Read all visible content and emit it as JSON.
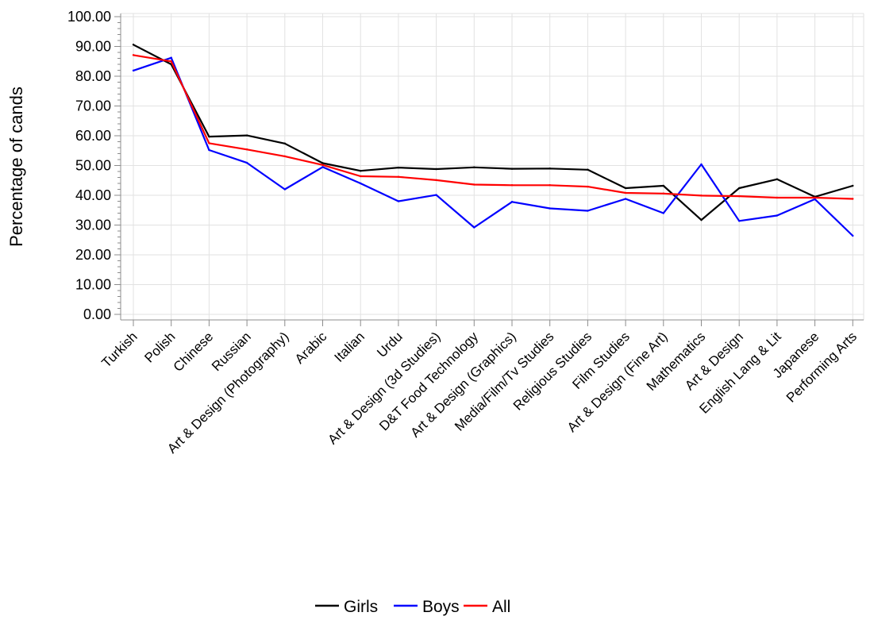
{
  "chart_data": {
    "type": "line",
    "ylabel": "Percentage of cands",
    "xlabel": "",
    "ylim": [
      0,
      100
    ],
    "yticks": [
      "0.00",
      "10.00",
      "20.00",
      "30.00",
      "40.00",
      "50.00",
      "60.00",
      "70.00",
      "80.00",
      "90.00",
      "100.00"
    ],
    "grid": true,
    "legend_position": "bottom",
    "categories": [
      "Turkish",
      "Polish",
      "Chinese",
      "Russian",
      "Art & Design (Photography)",
      "Arabic",
      "Italian",
      "Urdu",
      "Art & Design (3d Studies)",
      "D&T Food Technology",
      "Art & Design (Graphics)",
      "Media/Film/Tv Studies",
      "Religious Studies",
      "Film Studies",
      "Art & Design (Fine Art)",
      "Mathematics",
      "Art & Design",
      "English Lang & Lit",
      "Japanese",
      "Performing Arts"
    ],
    "series": [
      {
        "name": "Girls",
        "color": "#000000",
        "values": [
          90.6,
          84.0,
          59.7,
          60.1,
          57.4,
          50.8,
          48.2,
          49.3,
          48.8,
          49.4,
          48.9,
          49.0,
          48.6,
          42.4,
          43.2,
          31.7,
          42.4,
          45.4,
          39.5,
          43.2
        ]
      },
      {
        "name": "Boys",
        "color": "#0000ff",
        "values": [
          81.9,
          86.2,
          55.2,
          50.9,
          42.0,
          49.5,
          44.0,
          38.0,
          40.1,
          29.2,
          37.8,
          35.6,
          34.8,
          38.8,
          34.0,
          50.4,
          31.4,
          33.2,
          38.7,
          26.4
        ]
      },
      {
        "name": "All",
        "color": "#ff0000",
        "values": [
          87.1,
          85.0,
          57.5,
          55.4,
          53.1,
          50.2,
          46.4,
          46.2,
          45.1,
          43.6,
          43.4,
          43.4,
          42.9,
          40.8,
          40.6,
          39.9,
          39.7,
          39.2,
          39.2,
          38.8
        ]
      }
    ]
  }
}
